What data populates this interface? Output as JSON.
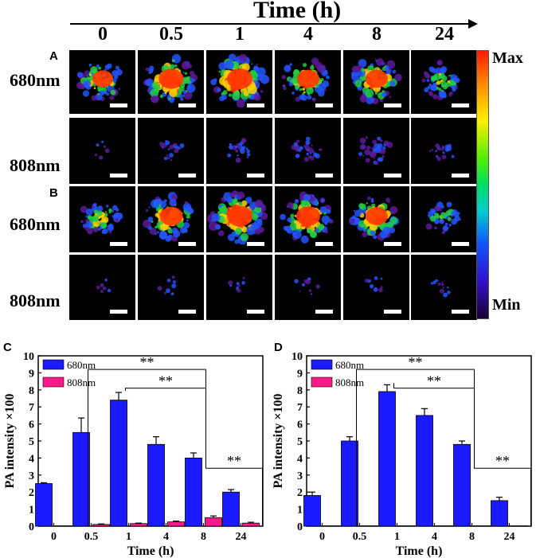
{
  "figure": {
    "title": "Time (h)",
    "time_points": [
      "0",
      "0.5",
      "1",
      "4",
      "8",
      "24"
    ],
    "panel_labels": [
      "A",
      "B",
      "C",
      "D"
    ],
    "row_labels": [
      "680nm",
      "808nm",
      "680nm",
      "808nm"
    ],
    "colorbar": {
      "max_label": "Max",
      "min_label": "Min"
    }
  },
  "colors": {
    "bar_680": "#1a1aff",
    "bar_808": "#ff1a8c",
    "hot": "#ff3a00",
    "yellow": "#ffd000",
    "green": "#22cc44",
    "blue": "#2255ff",
    "violet": "#5a1a9a"
  },
  "images": {
    "A_680": [
      0.7,
      0.95,
      1.0,
      0.8,
      0.8,
      0.55
    ],
    "A_808": [
      0.0,
      0.12,
      0.15,
      0.2,
      0.3,
      0.12
    ],
    "B_680": [
      0.55,
      0.85,
      1.0,
      0.9,
      0.8,
      0.4
    ],
    "B_808": [
      0.0,
      0.02,
      0.03,
      0.03,
      0.02,
      0.05
    ]
  },
  "chart_data": [
    {
      "panel": "C",
      "type": "bar",
      "categories": [
        "0",
        "0.5",
        "1",
        "4",
        "8",
        "24"
      ],
      "series": [
        {
          "name": "680nm",
          "values": [
            2.5,
            5.5,
            7.4,
            4.8,
            4.0,
            2.0
          ],
          "errors": [
            0.05,
            0.85,
            0.45,
            0.45,
            0.3,
            0.15
          ]
        },
        {
          "name": "808nm",
          "values": [
            0.02,
            0.1,
            0.15,
            0.25,
            0.5,
            0.18
          ],
          "errors": [
            0.0,
            0.03,
            0.03,
            0.05,
            0.1,
            0.05
          ]
        }
      ],
      "xlabel": "Time (h)",
      "ylabel": "PA intensity ×100",
      "ylim": [
        0,
        10
      ],
      "yticks": [
        "0",
        "1",
        "2",
        "3",
        "4",
        "5",
        "6",
        "7",
        "8",
        "9",
        "10"
      ],
      "significance": [
        {
          "from": "0.5",
          "to": "8",
          "label": "**"
        },
        {
          "from": "1",
          "to": "8",
          "label": "**"
        },
        {
          "from": "8",
          "to": "24",
          "label": "**"
        }
      ]
    },
    {
      "panel": "D",
      "type": "bar",
      "categories": [
        "0",
        "0.5",
        "1",
        "4",
        "8",
        "24"
      ],
      "series": [
        {
          "name": "680nm",
          "values": [
            1.8,
            5.0,
            7.9,
            6.5,
            4.8,
            1.5
          ],
          "errors": [
            0.2,
            0.25,
            0.4,
            0.4,
            0.2,
            0.2
          ]
        },
        {
          "name": "808nm",
          "values": [
            0.02,
            0.02,
            0.02,
            0.02,
            0.02,
            0.02
          ],
          "errors": [
            0.0,
            0.0,
            0.0,
            0.0,
            0.0,
            0.0
          ]
        }
      ],
      "xlabel": "Time (h)",
      "ylabel": "PA intensity ×100",
      "ylim": [
        0,
        10
      ],
      "yticks": [
        "0",
        "1",
        "2",
        "3",
        "4",
        "5",
        "6",
        "7",
        "8",
        "9",
        "10"
      ],
      "significance": [
        {
          "from": "0.5",
          "to": "8",
          "label": "**"
        },
        {
          "from": "1",
          "to": "8",
          "label": "**"
        },
        {
          "from": "8",
          "to": "24",
          "label": "**"
        }
      ]
    }
  ]
}
